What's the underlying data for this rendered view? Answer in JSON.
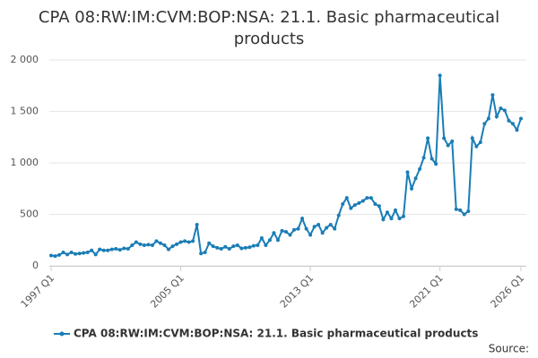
{
  "chart_data": {
    "type": "line",
    "title": "CPA 08:RW:IM:CVM:BOP:NSA: 21.1. Basic pharmaceutical products",
    "source": "Source:",
    "categories": [
      "1997 Q1",
      null,
      null,
      null,
      null,
      null,
      null,
      null,
      null,
      null,
      null,
      null,
      null,
      null,
      null,
      null,
      null,
      null,
      null,
      null,
      null,
      null,
      null,
      null,
      null,
      null,
      null,
      null,
      null,
      null,
      null,
      null,
      "2005 Q1",
      null,
      null,
      null,
      null,
      null,
      null,
      null,
      null,
      null,
      null,
      null,
      null,
      null,
      null,
      null,
      null,
      null,
      null,
      null,
      null,
      null,
      null,
      null,
      null,
      null,
      null,
      null,
      null,
      null,
      null,
      null,
      "2013 Q1",
      null,
      null,
      null,
      null,
      null,
      null,
      null,
      null,
      null,
      null,
      null,
      null,
      null,
      null,
      null,
      null,
      null,
      null,
      null,
      null,
      null,
      null,
      null,
      null,
      null,
      null,
      null,
      null,
      null,
      null,
      null,
      "2021 Q1",
      null,
      null,
      null,
      null,
      null,
      null,
      null,
      null,
      null,
      null,
      null,
      null,
      null,
      null,
      null,
      null,
      null,
      null,
      null,
      "2026 Q1"
    ],
    "series": [
      {
        "name": "CPA 08:RW:IM:CVM:BOP:NSA: 21.1. Basic pharmaceutical products",
        "color": "#1a7db6",
        "values": [
          100,
          95,
          105,
          130,
          110,
          130,
          115,
          120,
          125,
          130,
          150,
          110,
          160,
          150,
          150,
          160,
          165,
          155,
          170,
          165,
          200,
          230,
          210,
          200,
          205,
          200,
          240,
          220,
          200,
          160,
          190,
          210,
          230,
          240,
          230,
          240,
          400,
          120,
          130,
          220,
          190,
          175,
          165,
          185,
          165,
          190,
          200,
          170,
          175,
          180,
          195,
          200,
          270,
          200,
          250,
          320,
          250,
          340,
          330,
          300,
          350,
          360,
          460,
          360,
          300,
          380,
          400,
          320,
          370,
          400,
          360,
          490,
          600,
          660,
          560,
          590,
          610,
          630,
          660,
          660,
          600,
          580,
          450,
          520,
          460,
          540,
          460,
          480,
          910,
          750,
          850,
          940,
          1050,
          1240,
          1040,
          990,
          1850,
          1240,
          1170,
          1210,
          550,
          540,
          500,
          530,
          1240,
          1160,
          1200,
          1380,
          1430,
          1660,
          1450,
          1530,
          1510,
          1410,
          1380,
          1320,
          1430
        ]
      }
    ],
    "ylim": [
      0,
      2000
    ],
    "yticks": [
      0,
      500,
      {
        "value": 1000,
        "label": "1 000"
      },
      {
        "value": 1500,
        "label": "1 500"
      },
      {
        "value": 2000,
        "label": "2 000"
      }
    ],
    "grid": true
  }
}
